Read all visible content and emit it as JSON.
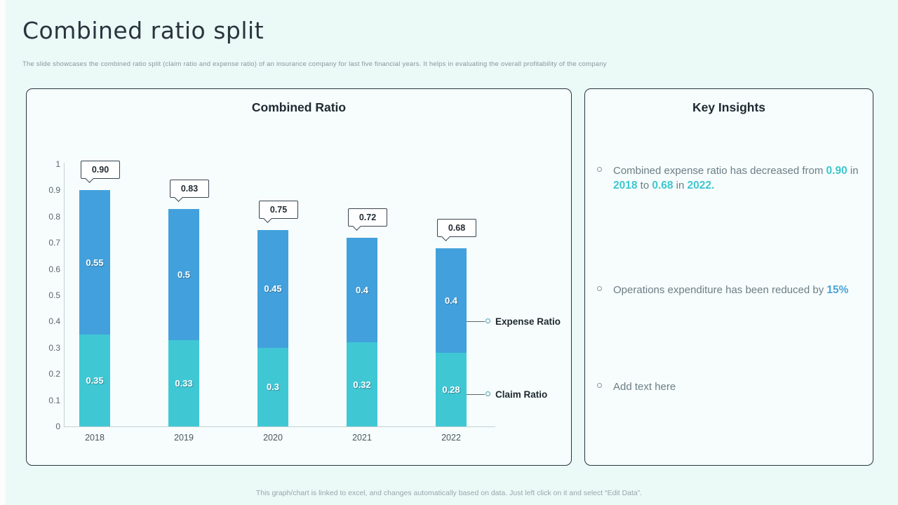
{
  "page": {
    "title": "Combined ratio split",
    "subtitle": "The slide showcases the combined ratio split (claim ratio and expense ratio) of an insurance company for last five financial years. It helps in evaluating the overall profitability of the company",
    "footer": "This graph/chart is linked to excel, and changes automatically based on data. Just left click on it and select “Edit Data”."
  },
  "chart_data": {
    "type": "bar",
    "stacked": true,
    "title": "Combined Ratio",
    "categories": [
      "2018",
      "2019",
      "2020",
      "2021",
      "2022"
    ],
    "series": [
      {
        "name": "Claim Ratio",
        "color": "#3fc8d4",
        "values": [
          0.35,
          0.33,
          0.3,
          0.32,
          0.28
        ],
        "value_labels": [
          "0.35",
          "0.33",
          "0.3",
          "0.32",
          "0.28"
        ]
      },
      {
        "name": "Expense Ratio",
        "color": "#42a1dc",
        "values": [
          0.55,
          0.5,
          0.45,
          0.4,
          0.4
        ],
        "value_labels": [
          "0.55",
          "0.5",
          "0.45",
          "0.4",
          "0.4"
        ]
      }
    ],
    "totals": [
      0.9,
      0.83,
      0.75,
      0.72,
      0.68
    ],
    "total_labels": [
      "0.90",
      "0.83",
      "0.75",
      "0.72",
      "0.68"
    ],
    "ylim": [
      0,
      1
    ],
    "yticks": [
      "1",
      "0.9",
      "0.8",
      "0.7",
      "0.6",
      "0.5",
      "0.4",
      "0.3",
      "0.2",
      "0.1",
      "0"
    ],
    "grid": false,
    "legend_position": "right",
    "legend": [
      {
        "label": "Expense Ratio"
      },
      {
        "label": "Claim Ratio"
      }
    ]
  },
  "insights": {
    "title": "Key Insights",
    "highlight_colors": {
      "teal": "#3fc6cf",
      "blue": "#4aa4da"
    },
    "items": [
      {
        "segments": [
          {
            "text": "Combined expense ratio has decreased from ",
            "highlight": ""
          },
          {
            "text": "0.90",
            "highlight": "teal"
          },
          {
            "text": " in ",
            "highlight": ""
          },
          {
            "text": "2018",
            "highlight": "teal"
          },
          {
            "text": " to ",
            "highlight": ""
          },
          {
            "text": "0.68",
            "highlight": "teal"
          },
          {
            "text": " in ",
            "highlight": ""
          },
          {
            "text": "2022.",
            "highlight": "teal"
          }
        ]
      },
      {
        "segments": [
          {
            "text": "Operations expenditure has been reduced by ",
            "highlight": ""
          },
          {
            "text": "15%",
            "highlight": "blue"
          }
        ]
      },
      {
        "segments": [
          {
            "text": "Add text here",
            "highlight": ""
          }
        ]
      }
    ]
  }
}
